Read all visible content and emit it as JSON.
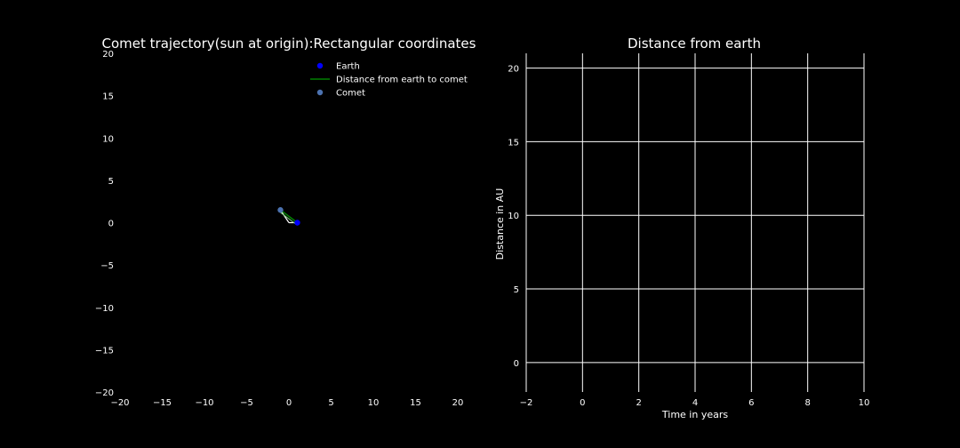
{
  "chart_data": [
    {
      "type": "scatter",
      "title": "Comet trajectory(sun at origin):Rectangular coordinates",
      "xlabel": "",
      "ylabel": "",
      "xlim": [
        -20,
        20
      ],
      "ylim": [
        -20,
        20
      ],
      "xticks": [
        -20,
        -15,
        -10,
        -5,
        0,
        5,
        10,
        15,
        20
      ],
      "yticks": [
        -20,
        -15,
        -10,
        -5,
        0,
        5,
        10,
        15,
        20
      ],
      "grid": false,
      "legend_position": "top-right",
      "series": [
        {
          "name": "Earth",
          "kind": "point",
          "color": "#0000ff",
          "points": [
            [
              1.0,
              0.0
            ]
          ]
        },
        {
          "name": "Distance from earth to comet",
          "kind": "line",
          "color": "#008000",
          "points": [
            [
              1.0,
              0.0
            ],
            [
              -1.0,
              1.5
            ]
          ]
        },
        {
          "name": "Comet",
          "kind": "point",
          "color": "#4c72b0",
          "points": [
            [
              -1.0,
              1.5
            ]
          ]
        }
      ],
      "trajectory_segments": [
        {
          "color": "#ffffff",
          "points": [
            [
              0.0,
              0.0
            ],
            [
              -1.0,
              1.5
            ]
          ]
        },
        {
          "color": "#ffffff",
          "points": [
            [
              0.0,
              0.0
            ],
            [
              1.0,
              0.0
            ]
          ]
        }
      ]
    },
    {
      "type": "line",
      "title": "Distance from earth",
      "xlabel": "Time in years",
      "ylabel": "Distance in AU",
      "xlim": [
        -2,
        10
      ],
      "ylim": [
        -2,
        21
      ],
      "xticks": [
        -2,
        0,
        2,
        4,
        6,
        8,
        10
      ],
      "yticks": [
        0,
        5,
        10,
        15,
        20
      ],
      "grid": true,
      "series": []
    }
  ],
  "colors": {
    "background": "#000000",
    "axis": "#ffffff",
    "grid": "#ffffff"
  }
}
